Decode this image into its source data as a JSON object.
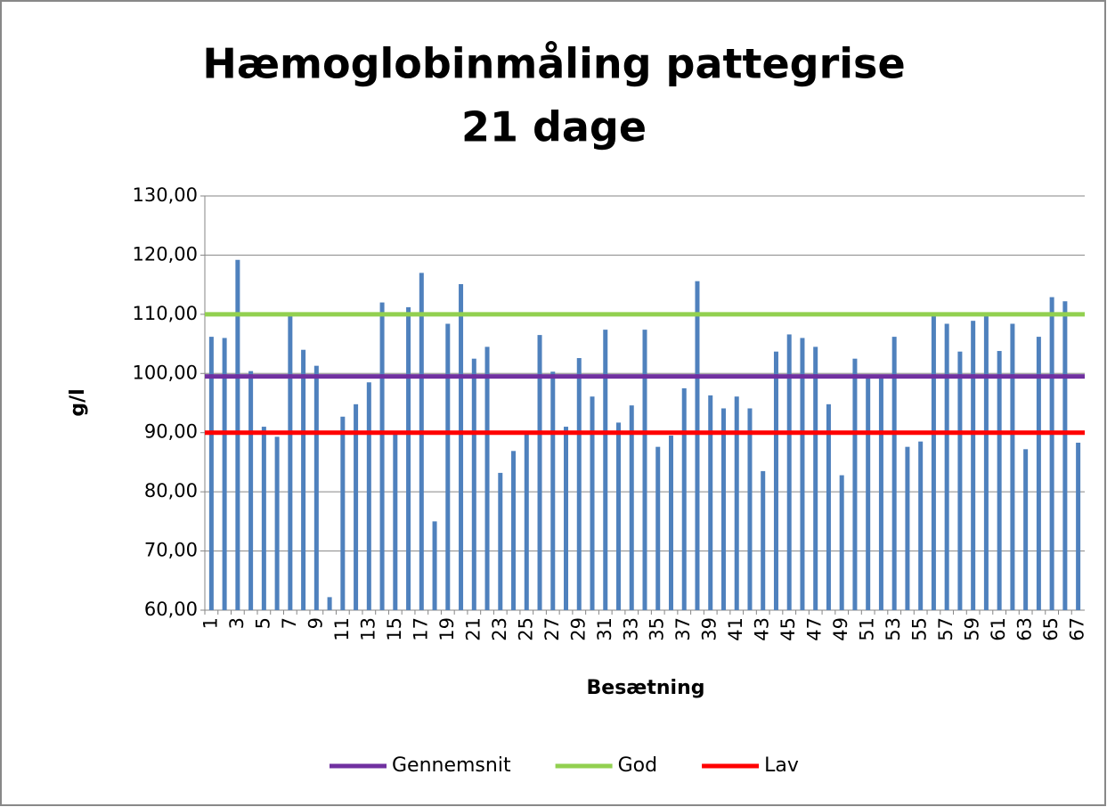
{
  "chart_data": {
    "type": "bar",
    "title": [
      "Hæmoglobinmåling pattegrise",
      "21 dage"
    ],
    "y_label": "g/l",
    "x_label": "Besætning",
    "categories": [
      "1",
      null,
      "3",
      null,
      "5",
      null,
      "7",
      null,
      "9",
      null,
      "11",
      null,
      "13",
      null,
      "15",
      null,
      "17",
      null,
      "19",
      null,
      "21",
      null,
      "23",
      null,
      "25",
      null,
      "27",
      null,
      "29",
      null,
      "31",
      null,
      "33",
      null,
      "35",
      null,
      "37",
      null,
      "39",
      null,
      "41",
      null,
      "43",
      null,
      "45",
      null,
      "47",
      null,
      "49",
      null,
      "51",
      null,
      "53",
      null,
      "55",
      null,
      "57",
      null,
      "59",
      null,
      "61",
      null,
      "63",
      null,
      "65",
      null,
      "67"
    ],
    "values": [
      106.2,
      106,
      119.2,
      100.4,
      91,
      89.3,
      110,
      104,
      101.3,
      62.2,
      92.7,
      94.8,
      98.5,
      112,
      90,
      111.2,
      117,
      75,
      108.4,
      115.1,
      102.5,
      104.5,
      83.2,
      86.9,
      89.8,
      106.5,
      100.3,
      91,
      102.6,
      96.1,
      107.4,
      91.7,
      94.6,
      107.4,
      87.6,
      89.5,
      97.5,
      115.6,
      96.3,
      94.1,
      96.1,
      94.1,
      83.5,
      103.7,
      106.6,
      106,
      104.5,
      94.8,
      82.8,
      102.5,
      99.4,
      99.4,
      106.2,
      87.6,
      88.5,
      110,
      108.4,
      103.7,
      108.9,
      110,
      103.8,
      108.4,
      87.2,
      106.2,
      112.9,
      112.2,
      88.3
    ],
    "color": "#4f81bd",
    "reference_lines": [
      {
        "name": "Gennemsnit",
        "color": "#7030a0",
        "value": 99.5
      },
      {
        "name": "God",
        "color": "#92d050",
        "value": 110
      },
      {
        "name": "Lav",
        "color": "#ff0000",
        "value": 90
      }
    ],
    "ylim": [
      60,
      130
    ],
    "yticks": [
      {
        "value": 60,
        "label": "60,00"
      },
      {
        "value": 70,
        "label": "70,00"
      },
      {
        "value": 80,
        "label": "80,00"
      },
      {
        "value": 90,
        "label": "90,00"
      },
      {
        "value": 100,
        "label": "100,00"
      },
      {
        "value": 110,
        "label": "110,00"
      },
      {
        "value": 120,
        "label": "120,00"
      },
      {
        "value": 130,
        "label": "130,00"
      }
    ],
    "grid": true,
    "legend": "bottom"
  }
}
